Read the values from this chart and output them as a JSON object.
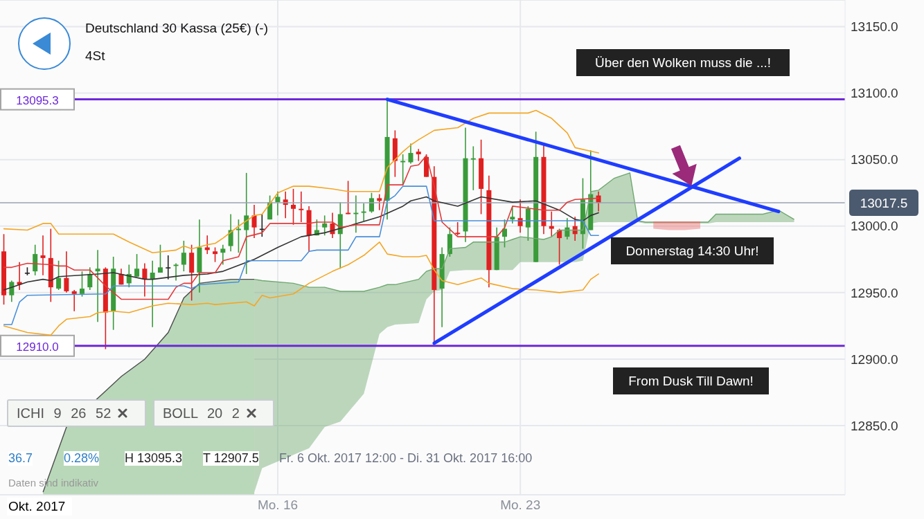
{
  "chart_data": {
    "type": "candlestick",
    "title": "Deutschland 30 Kassa (25€) (-)",
    "subtitle": "4St",
    "categories": [
      null,
      null,
      null,
      null,
      null,
      null,
      null,
      null,
      null,
      null,
      null,
      null,
      null,
      null,
      null,
      null,
      null,
      null,
      null,
      null,
      null,
      null,
      null,
      null,
      null,
      null,
      null,
      null,
      null,
      null,
      null,
      null,
      null,
      null,
      null,
      "Mo. 16",
      null,
      null,
      null,
      null,
      null,
      null,
      null,
      null,
      null,
      null,
      null,
      null,
      null,
      null,
      null,
      null,
      null,
      null,
      null,
      null,
      null,
      null,
      null,
      null,
      null,
      null,
      null,
      null,
      null,
      null,
      "Mo. 23",
      null,
      null,
      null,
      null,
      null,
      null,
      null,
      null,
      null,
      null,
      null,
      null,
      null,
      null,
      null,
      null,
      null,
      null,
      null,
      null,
      null,
      null,
      null,
      null,
      null,
      null,
      null,
      null,
      null,
      null,
      null,
      null,
      null,
      null,
      null,
      null,
      null,
      null,
      null,
      null,
      null
    ],
    "ohlc": [
      [
        12981,
        12994,
        12941,
        12948
      ],
      [
        12948,
        12959,
        12943,
        12958
      ],
      [
        12958,
        12973,
        12952,
        12956
      ],
      [
        12965,
        12969,
        12963,
        12965
      ],
      [
        12966,
        12986,
        12963,
        12979
      ],
      [
        12978,
        12993,
        12963,
        12976
      ],
      [
        12976,
        12998,
        12943,
        12954
      ],
      [
        12953,
        12974,
        12952,
        12961
      ],
      [
        12961,
        12981,
        12950,
        12951
      ],
      [
        12951,
        12952,
        12936,
        12949
      ],
      [
        12949,
        12966,
        12947,
        12953
      ],
      [
        12954,
        12969,
        12952,
        12964
      ],
      [
        12966,
        12982,
        12928,
        12968
      ],
      [
        12968,
        12969,
        12907.5,
        12935
      ],
      [
        12936,
        12977,
        12922,
        12968
      ],
      [
        12964,
        12968,
        12956,
        12956
      ],
      [
        12957,
        12971,
        12954,
        12964
      ],
      [
        12962,
        12979,
        12962,
        12968
      ],
      [
        12968,
        12972,
        12947,
        12960
      ],
      [
        12960,
        12974,
        12924,
        12965
      ],
      [
        12965,
        12986,
        12965,
        12969
      ],
      [
        12969,
        12978,
        12960,
        12969
      ],
      [
        12970,
        12972,
        12959,
        12971
      ],
      [
        12971,
        12989,
        12966,
        12980
      ],
      [
        12980,
        12986,
        12944,
        12965
      ],
      [
        12965,
        13005,
        12950,
        12984
      ],
      [
        12984,
        12993,
        12979,
        12982
      ],
      [
        12981,
        12984,
        12973,
        12979
      ],
      [
        12980,
        12986,
        12971,
        12983
      ],
      [
        12985,
        13009,
        12981,
        12997
      ],
      [
        12997,
        13005,
        12980,
        12998
      ],
      [
        12997,
        13040,
        12964,
        13008
      ],
      [
        13008,
        13016,
        12991,
        12999
      ],
      [
        12998,
        13009,
        12992,
        12998
      ],
      [
        13005,
        13023,
        13005,
        13018
      ],
      [
        13018,
        13026,
        13008,
        13022
      ],
      [
        13020,
        13026,
        13006,
        13016
      ],
      [
        13016,
        13028,
        13001,
        13013
      ],
      [
        13013,
        13026,
        13003,
        13012
      ],
      [
        13012,
        13015,
        12981,
        12993
      ],
      [
        12993,
        13005,
        12993,
        12997
      ],
      [
        12999,
        13008,
        12993,
        13002
      ],
      [
        13002,
        13010,
        12991,
        12994
      ],
      [
        12994,
        13018,
        12968,
        13009
      ],
      [
        13010,
        13034,
        13009,
        13009
      ],
      [
        13009,
        13023,
        12995,
        13010
      ],
      [
        13010,
        13017,
        13004,
        13011
      ],
      [
        13011,
        13025,
        13010,
        13021
      ],
      [
        13021,
        13024,
        13012,
        13019
      ],
      [
        13019,
        13095.3,
        13005,
        13067
      ],
      [
        13066,
        13072,
        13037,
        13049
      ],
      [
        13048,
        13054,
        13031,
        13049
      ],
      [
        13048,
        13062,
        13047,
        13055
      ],
      [
        13056,
        13058,
        13049,
        13054
      ],
      [
        13052,
        13054,
        13037,
        13037
      ],
      [
        13037,
        13045,
        12912,
        12952
      ],
      [
        12953,
        12984,
        12924,
        12979
      ],
      [
        12979,
        12999,
        12977,
        12994
      ],
      [
        12995,
        13003,
        12993,
        12994
      ],
      [
        12996,
        13074,
        12988,
        13051
      ],
      [
        13050,
        13060,
        13027,
        13051
      ],
      [
        13051,
        13065,
        13009,
        13028
      ],
      [
        13027,
        13038,
        12954,
        12967
      ],
      [
        12967,
        12999,
        12967,
        12992
      ],
      [
        12992,
        13005,
        12984,
        12998
      ],
      [
        13005,
        13015,
        13002,
        13007
      ],
      [
        13006,
        13020,
        12995,
        13000
      ],
      [
        12999,
        13015,
        12989,
        13013
      ],
      [
        12973,
        13071,
        12973,
        13052
      ],
      [
        13052,
        13061,
        12994,
        13000
      ],
      [
        13000,
        13011,
        12992,
        12998
      ],
      [
        12997,
        12998,
        12971,
        12991
      ],
      [
        12992,
        13006,
        12990,
        12999
      ],
      [
        13000,
        13007,
        12989,
        12994
      ],
      [
        12994,
        13036,
        12983,
        13020
      ],
      [
        12997,
        13057,
        12997,
        13024
      ],
      [
        13023,
        13026,
        13011,
        13017.5
      ],
      null,
      null,
      null,
      null,
      null,
      null,
      null,
      null,
      null,
      null,
      null,
      null,
      null,
      null,
      null,
      null,
      null,
      null,
      null,
      null,
      null,
      null,
      null,
      null,
      null,
      null,
      null,
      null,
      null,
      null,
      null
    ],
    "series": [
      {
        "type": "line",
        "color": "#f5a623",
        "values": [
          12998,
          null,
          null,
          12997,
          null,
          13002,
          13002,
          12994,
          null,
          null,
          null,
          null,
          null,
          null,
          12994,
          null,
          12988,
          null,
          null,
          12980,
          null,
          null,
          12982,
          12985,
          12983,
          null,
          12986,
          12987,
          12991,
          null,
          13000,
          null,
          13008,
          13009,
          null,
          13025,
          null,
          13030,
          null,
          13030,
          null,
          null,
          13028,
          null,
          13026,
          null,
          null,
          null,
          13026,
          13044,
          null,
          13056,
          13061,
          13065,
          null,
          13072,
          null,
          null,
          13074,
          null,
          13081,
          null,
          13085,
          null,
          null,
          null,
          null,
          13085,
          13087,
          null,
          13081,
          null,
          13070,
          13059,
          null,
          null,
          13055,
          null,
          null,
          null,
          null,
          null,
          null,
          null,
          null,
          null,
          null,
          null,
          null,
          null,
          null,
          null,
          null,
          null,
          null,
          null,
          null,
          null,
          null,
          null,
          null,
          null,
          null,
          null,
          null,
          null,
          null,
          null
        ]
      },
      {
        "type": "line",
        "color": "#f5a623",
        "values": [
          12925,
          null,
          null,
          12920,
          null,
          null,
          12918,
          12925,
          12930,
          null,
          null,
          12932,
          12935,
          null,
          12936,
          null,
          12935,
          null,
          null,
          12940,
          null,
          12942,
          null,
          null,
          12941,
          null,
          12942,
          12941,
          null,
          null,
          null,
          12943,
          12940,
          12948,
          12946,
          null,
          null,
          12949,
          null,
          12957,
          null,
          null,
          12966,
          null,
          12971,
          null,
          12978,
          null,
          12988,
          12979,
          null,
          12977,
          null,
          12977,
          12978,
          12967,
          12959,
          null,
          12956,
          null,
          null,
          12961,
          12957,
          null,
          null,
          12953,
          null,
          null,
          12952,
          null,
          null,
          12950,
          null,
          null,
          12952,
          12960,
          12964,
          null,
          null,
          null,
          null,
          null,
          null,
          null,
          null,
          null,
          null,
          null,
          null,
          null,
          null,
          null,
          null,
          null,
          null,
          null,
          null,
          null,
          null,
          null,
          null,
          null,
          null,
          null,
          null,
          null,
          null,
          null
        ]
      },
      {
        "type": "line",
        "color": "#333333",
        "values": [
          12952,
          null,
          null,
          12958,
          null,
          12960,
          12959,
          12962,
          null,
          null,
          null,
          null,
          12964,
          null,
          12965,
          null,
          null,
          null,
          12960,
          12960,
          null,
          null,
          null,
          12963,
          null,
          null,
          12964,
          12965,
          12966,
          null,
          null,
          null,
          12975,
          null,
          null,
          12984,
          null,
          null,
          12992,
          null,
          null,
          12995,
          null,
          null,
          13000,
          null,
          null,
          null,
          13007,
          null,
          null,
          13015,
          13019,
          null,
          13022,
          13019,
          null,
          null,
          13015,
          null,
          null,
          13022,
          null,
          null,
          null,
          13018,
          null,
          null,
          13019,
          null,
          null,
          13012,
          null,
          13005,
          13004,
          13008,
          13010,
          null,
          null,
          null,
          null,
          null,
          null,
          null,
          null,
          null,
          null,
          null,
          null,
          null,
          null,
          null,
          null,
          null,
          null,
          null,
          null,
          null,
          null,
          null,
          null,
          null,
          null,
          null,
          null,
          null,
          null,
          null
        ]
      },
      {
        "type": "line",
        "color": "#e23a3a",
        "values": [
          12969,
          12969,
          null,
          12972,
          null,
          null,
          12971,
          12970,
          12970,
          12967,
          null,
          12967,
          null,
          12955,
          null,
          12945,
          null,
          null,
          null,
          null,
          null,
          12945,
          12954,
          12957,
          12957,
          12965,
          null,
          12965,
          12974,
          null,
          12977,
          12992,
          null,
          12995,
          13002,
          null,
          null,
          null,
          null,
          13002,
          13003,
          null,
          13003,
          12999,
          null,
          13001,
          null,
          null,
          13001,
          13031,
          null,
          13031,
          13045,
          13046,
          13053,
          13030,
          13003,
          null,
          12992,
          null,
          null,
          null,
          null,
          12992,
          12999,
          13015,
          null,
          null,
          null,
          13012,
          null,
          13012,
          13018,
          13020,
          null,
          null,
          13021,
          null,
          null,
          null,
          null,
          null,
          null,
          null,
          null,
          null,
          null,
          null,
          null,
          null,
          null,
          null,
          null,
          null,
          null,
          null,
          null,
          null,
          null,
          null,
          null,
          null,
          null,
          null,
          null,
          null,
          null,
          null
        ]
      },
      {
        "type": "line",
        "color": "#4a90d9",
        "values": [
          12926,
          12926,
          12943,
          12948,
          null,
          null,
          null,
          null,
          null,
          null,
          null,
          null,
          null,
          12949,
          12955,
          null,
          null,
          null,
          null,
          null,
          null,
          null,
          null,
          12955,
          12953,
          12956,
          null,
          null,
          null,
          null,
          12958,
          12974,
          null,
          null,
          null,
          null,
          null,
          null,
          12974,
          12981,
          12982,
          null,
          null,
          null,
          12982,
          12992,
          null,
          null,
          12992,
          13019,
          13023,
          13030,
          null,
          null,
          13030,
          13004,
          null,
          null,
          null,
          null,
          null,
          null,
          null,
          null,
          null,
          null,
          null,
          null,
          null,
          null,
          null,
          null,
          null,
          null,
          13004,
          12993,
          12993,
          null,
          null,
          null,
          null,
          null,
          null,
          null,
          null,
          null,
          null,
          null,
          null,
          null,
          null,
          null,
          null,
          null,
          null,
          null,
          null,
          null,
          null,
          null,
          null,
          null,
          null,
          null,
          null,
          null,
          null,
          null
        ]
      },
      {
        "type": "area",
        "color": "#b9d8b9",
        "values": [
          null,
          null,
          null,
          null,
          null,
          12800,
          null,
          null,
          12849,
          null,
          null,
          null,
          null,
          12876,
          null,
          12887,
          null,
          null,
          12900,
          null,
          null,
          12920,
          null,
          12946,
          null,
          12957,
          null,
          null,
          null,
          12960,
          null,
          12960,
          12960,
          null,
          null,
          null,
          null,
          null,
          null,
          null,
          null,
          null,
          null,
          null,
          null,
          null,
          null,
          null,
          null,
          null,
          null,
          null,
          null,
          null,
          null,
          null,
          null,
          null,
          null,
          null,
          null,
          null,
          null,
          null,
          null,
          null,
          null,
          null,
          null,
          null,
          null,
          null,
          null,
          null,
          null,
          null,
          null,
          null,
          null,
          null,
          null,
          null,
          null,
          null,
          null,
          null,
          null,
          null,
          null,
          null,
          null,
          null,
          null,
          null,
          null,
          null,
          null,
          null,
          null,
          null,
          null,
          null,
          null,
          null,
          null,
          null,
          null,
          null
        ]
      },
      {
        "type": "line",
        "color": "#6fa86f",
        "values": [
          null,
          null,
          null,
          null,
          null,
          null,
          null,
          null,
          null,
          null,
          null,
          null,
          null,
          null,
          null,
          null,
          null,
          null,
          null,
          null,
          null,
          null,
          null,
          null,
          null,
          null,
          null,
          null,
          null,
          null,
          null,
          null,
          12960,
          12959,
          null,
          null,
          null,
          12957,
          null,
          12954,
          null,
          12954,
          null,
          12951,
          null,
          null,
          12951,
          null,
          12954,
          12956,
          12956,
          null,
          null,
          12960,
          12966,
          12968,
          12968,
          12983,
          null,
          12984,
          12988,
          null,
          12988,
          null,
          12988,
          12990,
          12992,
          null,
          null,
          12990,
          12992,
          12997,
          null,
          12997,
          12997,
          13026,
          13027,
          null,
          13036,
          null,
          13040,
          13004,
          13003,
          null,
          null,
          null,
          null,
          null,
          null,
          null,
          13003,
          13009,
          null,
          null,
          null,
          null,
          null,
          13009,
          null,
          13012,
          null,
          13005,
          null,
          null,
          null,
          null,
          null,
          null
        ],
        "lower": [
          null,
          null,
          null,
          null,
          null,
          null,
          null,
          null,
          null,
          null,
          null,
          null,
          null,
          null,
          null,
          null,
          null,
          null,
          null,
          null,
          null,
          null,
          null,
          null,
          null,
          null,
          null,
          null,
          null,
          null,
          null,
          null,
          12800,
          12818,
          null,
          null,
          null,
          12828,
          null,
          12833,
          null,
          12849,
          null,
          12853,
          null,
          null,
          12874,
          null,
          12919,
          12924,
          12926,
          null,
          null,
          12927,
          12945,
          12951,
          12952,
          12966,
          null,
          12967,
          12967,
          null,
          12967,
          null,
          12967,
          12967,
          12973,
          null,
          null,
          12973,
          12973,
          12973,
          null,
          12973,
          12974,
          13002,
          13003,
          null,
          13003,
          null,
          13003,
          13003,
          13002,
          null,
          null,
          null,
          null,
          null,
          null,
          null,
          13002,
          13003,
          null,
          null,
          null,
          null,
          null,
          13003,
          null,
          13003,
          null,
          13003,
          null,
          null,
          null,
          null,
          null,
          null
        ],
        "upper": [
          null,
          null,
          null,
          null,
          null,
          null,
          null,
          null,
          null,
          null,
          null,
          null,
          null,
          null,
          null,
          null,
          null,
          null,
          null,
          null,
          null,
          null,
          null,
          null,
          null,
          null,
          null,
          null,
          null,
          null,
          null,
          null,
          12960,
          12959,
          null,
          null,
          null,
          12957,
          null,
          12954,
          null,
          12954,
          null,
          12951,
          null,
          null,
          12951,
          null,
          12954,
          12956,
          12956,
          null,
          null,
          12960,
          12966,
          12968,
          12968,
          12983,
          null,
          12984,
          12988,
          null,
          12988,
          null,
          12988,
          12990,
          12992,
          null,
          null,
          12990,
          12992,
          12997,
          null,
          12997,
          12997,
          13026,
          13027,
          null,
          13036,
          null,
          13040,
          13004,
          13003,
          null,
          null,
          null,
          null,
          null,
          null,
          null,
          13003,
          13009,
          null,
          null,
          null,
          null,
          null,
          13009,
          null,
          13012,
          null,
          13005,
          null,
          null,
          null,
          null,
          null,
          null
        ]
      },
      {
        "type": "line",
        "color": "#e86f6f",
        "values": [
          null,
          null,
          null,
          null,
          null,
          null,
          null,
          null,
          null,
          null,
          null,
          null,
          null,
          null,
          null,
          null,
          null,
          null,
          null,
          null,
          null,
          null,
          null,
          null,
          null,
          null,
          null,
          null,
          null,
          null,
          null,
          null,
          null,
          null,
          null,
          null,
          null,
          null,
          null,
          null,
          null,
          null,
          null,
          null,
          null,
          null,
          null,
          null,
          null,
          null,
          null,
          null,
          null,
          null,
          null,
          null,
          null,
          null,
          null,
          null,
          null,
          null,
          null,
          null,
          null,
          null,
          null,
          null,
          null,
          null,
          null,
          null,
          null,
          null,
          null,
          null,
          null,
          null,
          null,
          null,
          null,
          null,
          null,
          13003,
          null,
          13003,
          null,
          13003,
          null,
          13003,
          null,
          null,
          null,
          null,
          null,
          null,
          null,
          null,
          null,
          null,
          null,
          null,
          null,
          null,
          null,
          null,
          null,
          null
        ],
        "lower": [
          null,
          null,
          null,
          null,
          null,
          null,
          null,
          null,
          null,
          null,
          null,
          null,
          null,
          null,
          null,
          null,
          null,
          null,
          null,
          null,
          null,
          null,
          null,
          null,
          null,
          null,
          null,
          null,
          null,
          null,
          null,
          null,
          null,
          null,
          null,
          null,
          null,
          null,
          null,
          null,
          null,
          null,
          null,
          null,
          null,
          null,
          null,
          null,
          null,
          null,
          null,
          null,
          null,
          null,
          null,
          null,
          null,
          null,
          null,
          null,
          null,
          null,
          null,
          null,
          null,
          null,
          null,
          null,
          null,
          null,
          null,
          null,
          null,
          null,
          null,
          null,
          null,
          null,
          null,
          null,
          null,
          null,
          null,
          12998,
          null,
          12997,
          null,
          12997,
          null,
          12998,
          null,
          null,
          null,
          null,
          null,
          null,
          null,
          null,
          null,
          null,
          null,
          null,
          null,
          null,
          null,
          null,
          null,
          null
        ],
        "upper": [
          null,
          null,
          null,
          null,
          null,
          null,
          null,
          null,
          null,
          null,
          null,
          null,
          null,
          null,
          null,
          null,
          null,
          null,
          null,
          null,
          null,
          null,
          null,
          null,
          null,
          null,
          null,
          null,
          null,
          null,
          null,
          null,
          null,
          null,
          null,
          null,
          null,
          null,
          null,
          null,
          null,
          null,
          null,
          null,
          null,
          null,
          null,
          null,
          null,
          null,
          null,
          null,
          null,
          null,
          null,
          null,
          null,
          null,
          null,
          null,
          null,
          null,
          null,
          null,
          null,
          null,
          null,
          null,
          null,
          null,
          null,
          null,
          null,
          null,
          null,
          null,
          null,
          null,
          null,
          null,
          null,
          null,
          null,
          13003,
          null,
          13003,
          null,
          13003,
          null,
          13003,
          null,
          null,
          null,
          null,
          null,
          null,
          null,
          null,
          null,
          null,
          null,
          null,
          null,
          null,
          null,
          null,
          null,
          null
        ]
      },
      {
        "type": "line",
        "color": "#1f3dff",
        "values": [
          null,
          null,
          null,
          null,
          null,
          null,
          null,
          null,
          null,
          null,
          null,
          null,
          null,
          null,
          null,
          null,
          null,
          null,
          null,
          null,
          null,
          null,
          null,
          null,
          null,
          null,
          null,
          null,
          null,
          null,
          null,
          null,
          null,
          null,
          null,
          null,
          null,
          null,
          null,
          null,
          null,
          null,
          null,
          null,
          null,
          null,
          null,
          null,
          null,
          13095.3,
          null,
          null,
          null,
          null,
          null,
          null,
          null,
          null,
          null,
          null,
          null,
          null,
          null,
          null,
          null,
          null,
          null,
          null,
          null,
          null,
          null,
          null,
          null,
          null,
          null,
          null,
          null,
          null,
          null,
          null,
          null,
          null,
          null,
          null,
          null,
          null,
          null,
          null,
          null,
          null,
          null,
          null,
          null,
          null,
          null,
          null,
          null,
          null,
          null,
          13011,
          null,
          null,
          null,
          null,
          null,
          null,
          null,
          null
        ]
      },
      {
        "type": "line",
        "color": "#1f3dff",
        "values": [
          null,
          null,
          null,
          null,
          null,
          null,
          null,
          null,
          null,
          null,
          null,
          null,
          null,
          null,
          null,
          null,
          null,
          null,
          null,
          null,
          null,
          null,
          null,
          null,
          null,
          null,
          null,
          null,
          null,
          null,
          null,
          null,
          null,
          null,
          null,
          null,
          null,
          null,
          null,
          null,
          null,
          null,
          null,
          null,
          null,
          null,
          null,
          null,
          null,
          null,
          null,
          null,
          null,
          null,
          null,
          12912,
          null,
          null,
          null,
          null,
          null,
          null,
          null,
          null,
          null,
          null,
          null,
          null,
          null,
          null,
          null,
          null,
          null,
          null,
          null,
          null,
          null,
          null,
          null,
          null,
          null,
          null,
          null,
          null,
          null,
          null,
          null,
          null,
          null,
          null,
          null,
          null,
          null,
          null,
          13051,
          null,
          null,
          null,
          null,
          null,
          null,
          null,
          null,
          null,
          null,
          null,
          null,
          null
        ]
      }
    ],
    "ylim": [
      12798,
      13170
    ],
    "yticks": [
      {
        "value": 12850,
        "label": "12850.0"
      },
      {
        "value": 12900,
        "label": "12900.0"
      },
      {
        "value": 12950,
        "label": "12950.0"
      },
      {
        "value": 13000,
        "label": "13000.0"
      },
      {
        "value": 13050,
        "label": "13050.0"
      },
      {
        "value": 13100,
        "label": "13100.0"
      },
      {
        "value": 13150,
        "label": "13150.0"
      }
    ],
    "grid": true,
    "ref_lines": [
      {
        "axis": "y",
        "value": 13095.3,
        "label": "13095.3",
        "color": "#6d28d9"
      },
      {
        "axis": "y",
        "value": 12910,
        "label": "12910.0",
        "color": "#6d28d9"
      },
      {
        "axis": "y",
        "value": 13017.5,
        "label": "13017.5",
        "color": "#9aa3b2"
      }
    ],
    "annotations": [
      "Über den Wolken muss die ...!",
      "Donnerstag 14:30 Uhr!",
      "From Dusk Till Dawn!",
      "ICHI 9 26 52",
      "BOLL 20 2",
      "36.7",
      "0.28%",
      "H 13095.3",
      "T 12907.5",
      "Fr. 6 Okt. 2017 12:00 - Di. 31 Okt. 2017 16:00",
      "Daten sind indikativ",
      "Okt. 2017"
    ]
  }
}
